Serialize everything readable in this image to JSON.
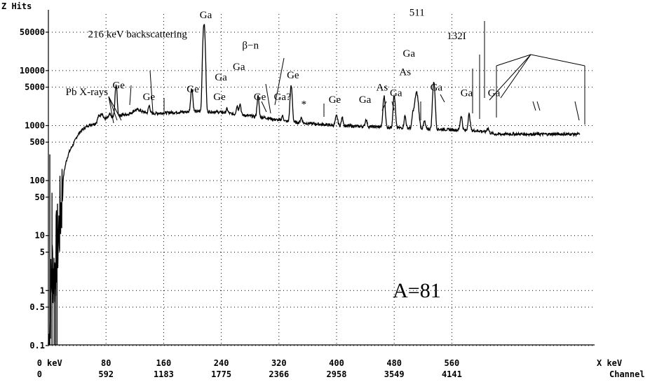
{
  "chart_data": {
    "type": "line",
    "title": "",
    "ylabel": "Z Hits",
    "xlabel": "X keV",
    "x2label": "Channel",
    "x_unit_label": "keV",
    "scale_y": "log",
    "ylim": [
      0.1,
      100000
    ],
    "xlim": [
      0,
      620
    ],
    "grid": true,
    "y_ticks": [
      {
        "value": 0.1,
        "label": "0.1"
      },
      {
        "value": 0.5,
        "label": "0.5"
      },
      {
        "value": 1,
        "label": "1"
      },
      {
        "value": 5,
        "label": "5"
      },
      {
        "value": 10,
        "label": "10"
      },
      {
        "value": 50,
        "label": "50"
      },
      {
        "value": 100,
        "label": "100"
      },
      {
        "value": 500,
        "label": "500"
      },
      {
        "value": 1000,
        "label": "1000"
      },
      {
        "value": 5000,
        "label": "5000"
      },
      {
        "value": 10000,
        "label": "10000"
      },
      {
        "value": 50000,
        "label": "50000"
      }
    ],
    "x_ticks": [
      {
        "value": 0,
        "label": "0",
        "channel": "0"
      },
      {
        "value": 80,
        "label": "80",
        "channel": "592"
      },
      {
        "value": 160,
        "label": "160",
        "channel": "1183"
      },
      {
        "value": 240,
        "label": "240",
        "channel": "1775"
      },
      {
        "value": 320,
        "label": "320",
        "channel": "2366"
      },
      {
        "value": 400,
        "label": "400",
        "channel": "2958"
      },
      {
        "value": 480,
        "label": "480",
        "channel": "3549"
      },
      {
        "value": 560,
        "label": "560",
        "channel": "4141"
      }
    ],
    "background": {
      "x": [
        0,
        2,
        4,
        6,
        8,
        10,
        12,
        14,
        16,
        18,
        20,
        22,
        25,
        28,
        32,
        36,
        40,
        45,
        50,
        55,
        60,
        65,
        70,
        75,
        80,
        90,
        100,
        110,
        115,
        120,
        125,
        130,
        140,
        160,
        180,
        200,
        220,
        240,
        260,
        280,
        300,
        320,
        340,
        360,
        380,
        400,
        420,
        440,
        460,
        480,
        500,
        520,
        540,
        560,
        580,
        600,
        620
      ],
      "y": [
        0.1,
        0.3,
        1.5,
        3,
        2,
        4,
        6,
        10,
        20,
        40,
        90,
        150,
        230,
        310,
        400,
        500,
        650,
        800,
        900,
        1000,
        1050,
        1100,
        1200,
        1300,
        1350,
        1450,
        1550,
        1600,
        1700,
        1900,
        1950,
        1800,
        1650,
        1700,
        1750,
        1800,
        1800,
        1750,
        1600,
        1500,
        1400,
        1250,
        1150,
        1100,
        1050,
        1000,
        980,
        960,
        950,
        920,
        900,
        880,
        860,
        840,
        820,
        800,
        700
      ]
    },
    "peaks": [
      {
        "x": 70,
        "y": 1500,
        "w": 1.5
      },
      {
        "x": 74,
        "y": 1700,
        "w": 1.5
      },
      {
        "x": 85,
        "y": 1600,
        "w": 1.2
      },
      {
        "x": 94,
        "y": 5500,
        "w": 1.2
      },
      {
        "x": 140,
        "y": 2300,
        "w": 1.2
      },
      {
        "x": 199,
        "y": 4700,
        "w": 1.3
      },
      {
        "x": 216,
        "y": 72000,
        "w": 1.3
      },
      {
        "x": 248,
        "y": 2000,
        "w": 1.2
      },
      {
        "x": 262,
        "y": 2300,
        "w": 1.2
      },
      {
        "x": 266,
        "y": 2500,
        "w": 1.2
      },
      {
        "x": 291,
        "y": 3400,
        "w": 1.2
      },
      {
        "x": 325,
        "y": 1500,
        "w": 1.2
      },
      {
        "x": 337,
        "y": 5200,
        "w": 1.3
      },
      {
        "x": 351,
        "y": 1400,
        "w": 1.2
      },
      {
        "x": 400,
        "y": 1500,
        "w": 1.5
      },
      {
        "x": 408,
        "y": 1400,
        "w": 1.2
      },
      {
        "x": 441,
        "y": 1300,
        "w": 1.2
      },
      {
        "x": 466,
        "y": 3400,
        "w": 1.3
      },
      {
        "x": 480,
        "y": 3500,
        "w": 1.3
      },
      {
        "x": 495,
        "y": 1500,
        "w": 1.2
      },
      {
        "x": 506,
        "y": 1600,
        "w": 1.2
      },
      {
        "x": 511,
        "y": 4000,
        "w": 2.2
      },
      {
        "x": 522,
        "y": 1200,
        "w": 1.2
      },
      {
        "x": 535,
        "y": 6200,
        "w": 1.4
      },
      {
        "x": 573,
        "y": 1500,
        "w": 1.3
      },
      {
        "x": 584,
        "y": 1600,
        "w": 1.3
      },
      {
        "x": 610,
        "y": 900,
        "w": 1.3
      }
    ],
    "annotations": [
      {
        "text": "Pb X-rays",
        "x": 24,
        "y": 3600
      },
      {
        "text": "216 keV backscattering",
        "x": 55,
        "y": 40000
      },
      {
        "text": "Ga",
        "x": 210,
        "y": 90000
      },
      {
        "text": "Ge",
        "x": 89,
        "y": 4700
      },
      {
        "text": "Ge",
        "x": 131,
        "y": 2900
      },
      {
        "text": "Ge",
        "x": 192,
        "y": 4000
      },
      {
        "text": "Ge",
        "x": 229,
        "y": 2900
      },
      {
        "text": "Ga",
        "x": 231,
        "y": 6600
      },
      {
        "text": "Ga",
        "x": 256,
        "y": 10300
      },
      {
        "text": "β−n",
        "x": 269,
        "y": 25000
      },
      {
        "text": "Ge",
        "x": 285,
        "y": 2900
      },
      {
        "text": "Ga?",
        "x": 313,
        "y": 2900
      },
      {
        "text": "Ge",
        "x": 331,
        "y": 7200
      },
      {
        "text": "*",
        "x": 351,
        "y": 2150
      },
      {
        "text": "Ge",
        "x": 389,
        "y": 2600
      },
      {
        "text": "Ga",
        "x": 431,
        "y": 2600
      },
      {
        "text": "As",
        "x": 455,
        "y": 4300
      },
      {
        "text": "Ga",
        "x": 474,
        "y": 3400
      },
      {
        "text": "As",
        "x": 487,
        "y": 8200
      },
      {
        "text": "Ga",
        "x": 492,
        "y": 18000
      },
      {
        "text": "511",
        "x": 501,
        "y": 100000
      },
      {
        "text": "132I",
        "x": 553,
        "y": 37000
      },
      {
        "text": "Ga",
        "x": 530,
        "y": 4300
      },
      {
        "text": "Ga",
        "x": 572,
        "y": 3400
      },
      {
        "text": "Ga",
        "x": 610,
        "y": 3400
      },
      {
        "text": "A=81",
        "x": 478,
        "y": 0.75
      }
    ]
  }
}
